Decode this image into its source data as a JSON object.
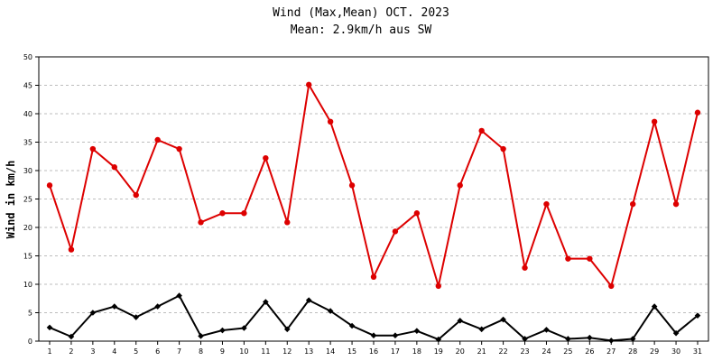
{
  "chart_data": {
    "type": "line",
    "title": "Wind (Max,Mean) OCT. 2023",
    "subtitle": "Mean: 2.9km/h aus SW",
    "xlabel": "",
    "ylabel": "Wind in km/h",
    "ylim": [
      0,
      50
    ],
    "yticks": [
      0,
      5,
      10,
      15,
      20,
      25,
      30,
      35,
      40,
      45,
      50
    ],
    "grid": true,
    "categories": [
      "1",
      "2",
      "3",
      "4",
      "5",
      "6",
      "7",
      "8",
      "9",
      "10",
      "11",
      "12",
      "13",
      "14",
      "15",
      "16",
      "17",
      "18",
      "19",
      "20",
      "21",
      "22",
      "23",
      "24",
      "25",
      "26",
      "27",
      "28",
      "29",
      "30",
      "31"
    ],
    "series": [
      {
        "color": "#dd0000",
        "values": [
          27.4,
          16.1,
          33.8,
          30.6,
          25.7,
          35.4,
          33.8,
          20.9,
          22.5,
          22.5,
          32.2,
          20.9,
          45.1,
          38.6,
          27.4,
          11.3,
          19.3,
          22.5,
          9.7,
          27.4,
          37.0,
          33.8,
          12.9,
          24.1,
          14.5,
          14.5,
          9.7,
          24.1,
          38.6,
          24.1,
          40.2
        ]
      },
      {
        "color": "#000000",
        "values": [
          2.4,
          0.8,
          5.0,
          6.1,
          4.2,
          6.1,
          8.0,
          0.9,
          1.9,
          2.3,
          6.9,
          2.1,
          7.2,
          5.3,
          2.7,
          1.0,
          1.0,
          1.8,
          0.3,
          3.6,
          2.1,
          3.8,
          0.4,
          2.0,
          0.4,
          0.6,
          0.1,
          0.4,
          6.1,
          1.4,
          4.5
        ]
      }
    ]
  }
}
